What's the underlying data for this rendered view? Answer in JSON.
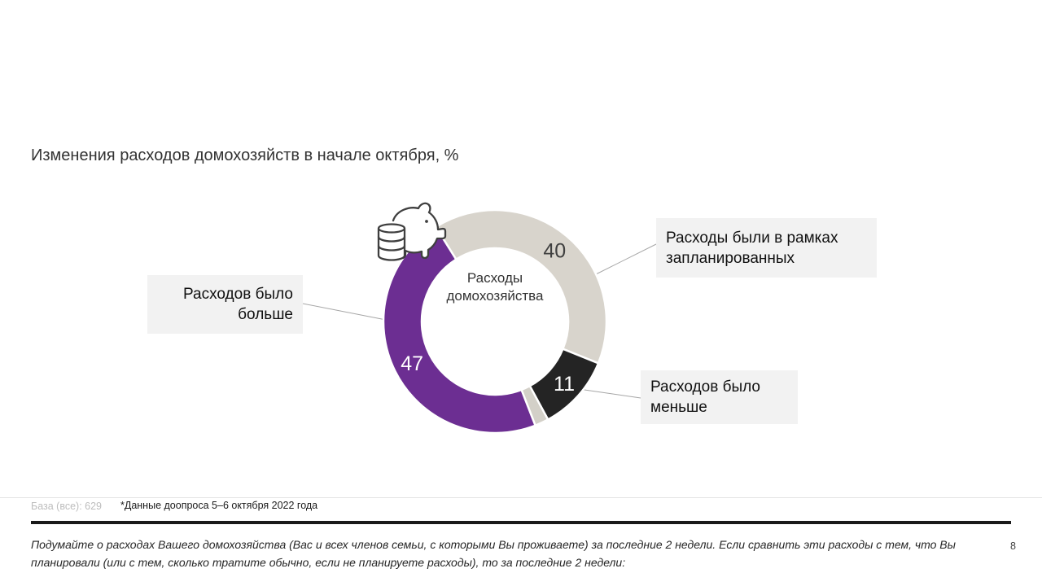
{
  "slide": {
    "title": "Изменения расходов домохозяйств в начале октября, %",
    "page_number": "8"
  },
  "callouts": {
    "planned": "Расходы были в рамках запланированных",
    "more": "Расходов было больше",
    "less": "Расходов было меньше"
  },
  "footer": {
    "base_label": "База (все): 629",
    "survey_note": "*Данные доопроса 5–6 октября 2022 года",
    "question_text": "Подумайте о расходах Вашего домохозяйства (Вас и всех членов семьи, с которыми Вы проживаете)  за последние 2 недели.  Если сравнить эти расходы с тем, что Вы планировали (или с тем, сколько тратите обычно, если не планируете расходы), то за последние 2 недели:"
  },
  "chart_data": {
    "type": "pie",
    "subtype": "donut",
    "title": "Изменения расходов домохозяйств в начале октября, %",
    "unit": "%",
    "center_label": {
      "line1": "Расходы",
      "line2": "домохозяйства"
    },
    "center_icon": "piggy-bank-icon",
    "rotation_deg": -32,
    "outer_radius": 137,
    "inner_radius": 90,
    "label_radius": 114,
    "value_font_size": 25,
    "segment_gap_color": "#FFFFFF",
    "segments": [
      {
        "label": "Расходы были в рамках запланированных",
        "value": 40,
        "color": "#D8D4CC",
        "value_label": "40",
        "value_color": "#3F3F3F"
      },
      {
        "label": "Расходов было меньше",
        "value": 11,
        "color": "#242424",
        "value_label": "11",
        "value_color": "#FFFFFF"
      },
      {
        "label": "",
        "value": 2,
        "color": "#D3D0C8",
        "value_label": "",
        "value_color": ""
      },
      {
        "label": "Расходов было больше",
        "value": 47,
        "color": "#6C2E92",
        "value_label": "47",
        "value_color": "#FFFFFF"
      }
    ]
  }
}
